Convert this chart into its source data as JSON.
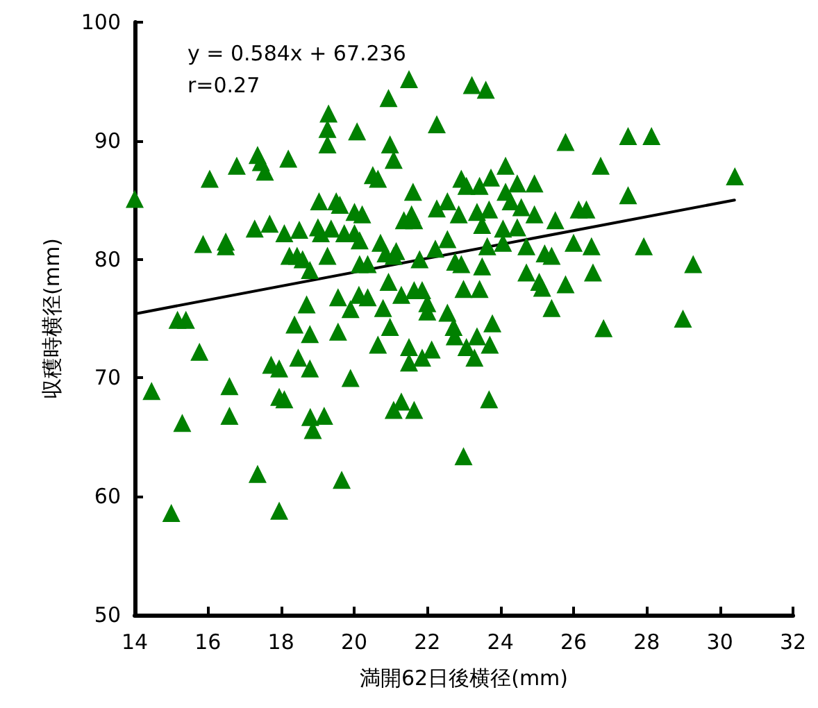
{
  "chart_data": {
    "type": "scatter",
    "xlabel": "満開62日後横径(mm)",
    "ylabel": "収穫時横径(mm)",
    "annotations": [
      "y = 0.584x + 67.236",
      "r=0.27"
    ],
    "xlim": [
      14,
      32
    ],
    "xticks": [
      14,
      16,
      18,
      20,
      22,
      24,
      26,
      28,
      30,
      32
    ],
    "ylim": [
      50,
      100
    ],
    "yticks": [
      50,
      60,
      70,
      80,
      90,
      100
    ],
    "grid": false,
    "marker": "triangle",
    "series": [
      {
        "color": "#008000",
        "x": [
          14.0,
          14.46,
          15.0,
          15.3,
          15.17,
          15.4,
          15.77,
          15.87,
          16.05,
          16.49,
          16.49,
          16.59,
          16.59,
          16.79,
          17.28,
          17.36,
          17.45,
          17.56,
          17.36,
          17.69,
          17.73,
          17.95,
          17.95,
          18.09,
          17.95,
          18.2,
          18.09,
          18.23,
          18.44,
          18.59,
          18.5,
          18.37,
          18.47,
          18.7,
          18.79,
          18.79,
          18.79,
          18.8,
          18.87,
          19.01,
          19.09,
          19.04,
          19.18,
          19.27,
          19.3,
          19.27,
          19.27,
          19.37,
          19.51,
          19.61,
          19.56,
          19.56,
          19.66,
          19.73,
          19.9,
          19.9,
          20.01,
          20.22,
          20.08,
          20.01,
          20.15,
          20.15,
          20.37,
          20.13,
          20.37,
          20.51,
          20.65,
          20.65,
          20.72,
          20.86,
          21.08,
          20.79,
          20.94,
          20.98,
          20.94,
          20.98,
          21.08,
          21.08,
          21.29,
          21.29,
          21.15,
          21.36,
          21.57,
          21.61,
          21.64,
          21.5,
          21.64,
          21.5,
          21.5,
          21.64,
          21.79,
          21.86,
          22.0,
          22.0,
          21.86,
          22.12,
          22.26,
          22.22,
          22.26,
          22.55,
          22.55,
          22.55,
          22.72,
          22.75,
          22.76,
          22.93,
          22.86,
          22.93,
          23.07,
          22.99,
          22.99,
          23.07,
          23.22,
          23.36,
          23.29,
          23.43,
          23.43,
          23.5,
          23.36,
          23.5,
          23.6,
          23.69,
          23.74,
          23.64,
          23.71,
          23.78,
          23.69,
          24.07,
          24.07,
          24.14,
          24.14,
          24.28,
          24.46,
          24.57,
          24.46,
          24.71,
          24.71,
          24.93,
          24.93,
          25.06,
          25.14,
          25.21,
          25.4,
          25.4,
          25.5,
          25.78,
          25.78,
          26.0,
          26.14,
          26.35,
          26.49,
          26.53,
          26.74,
          26.82,
          27.49,
          27.49,
          27.92,
          28.13,
          28.99,
          29.27,
          30.41
        ],
        "values": [
          85.1,
          68.9,
          58.6,
          66.2,
          74.9,
          74.9,
          72.2,
          81.3,
          86.8,
          81.5,
          81.1,
          69.3,
          66.8,
          87.9,
          82.6,
          88.8,
          88.2,
          87.4,
          61.9,
          83.0,
          71.1,
          70.8,
          68.4,
          68.2,
          58.8,
          88.5,
          82.2,
          80.3,
          80.3,
          80.0,
          82.5,
          74.5,
          71.7,
          76.2,
          79.1,
          73.7,
          70.8,
          66.7,
          65.6,
          82.7,
          82.2,
          84.9,
          66.8,
          80.3,
          92.3,
          91.0,
          89.7,
          82.6,
          84.9,
          84.6,
          73.9,
          76.8,
          61.4,
          82.2,
          70.0,
          75.8,
          84.0,
          83.8,
          90.8,
          82.2,
          81.6,
          79.6,
          79.6,
          77.0,
          76.8,
          87.1,
          86.8,
          72.8,
          81.4,
          80.5,
          80.3,
          75.9,
          78.1,
          74.3,
          93.6,
          89.7,
          88.4,
          67.3,
          68.0,
          77.0,
          80.7,
          83.3,
          83.8,
          85.7,
          83.3,
          95.2,
          77.4,
          72.6,
          71.3,
          67.3,
          80.0,
          77.4,
          76.3,
          75.6,
          71.7,
          72.4,
          91.4,
          80.9,
          84.3,
          84.9,
          81.7,
          75.5,
          74.3,
          73.5,
          79.8,
          79.6,
          83.8,
          86.8,
          86.2,
          77.5,
          63.4,
          72.6,
          94.7,
          73.5,
          71.7,
          86.2,
          77.5,
          79.4,
          84.0,
          82.9,
          94.3,
          84.2,
          86.9,
          81.1,
          72.8,
          74.6,
          68.2,
          81.4,
          82.6,
          87.9,
          85.7,
          84.9,
          86.4,
          84.4,
          82.7,
          81.1,
          78.9,
          86.4,
          83.8,
          78.1,
          77.6,
          80.5,
          80.3,
          75.9,
          83.3,
          89.9,
          77.9,
          81.4,
          84.2,
          84.2,
          81.1,
          78.9,
          87.9,
          74.2,
          90.4,
          85.4,
          81.1,
          90.4,
          75.0,
          79.6,
          87.0
        ]
      },
      {
        "type": "line",
        "color": "#000000",
        "marker": "none",
        "x": [
          14,
          30.4
        ],
        "values": [
          75.4,
          85.0
        ]
      }
    ]
  }
}
